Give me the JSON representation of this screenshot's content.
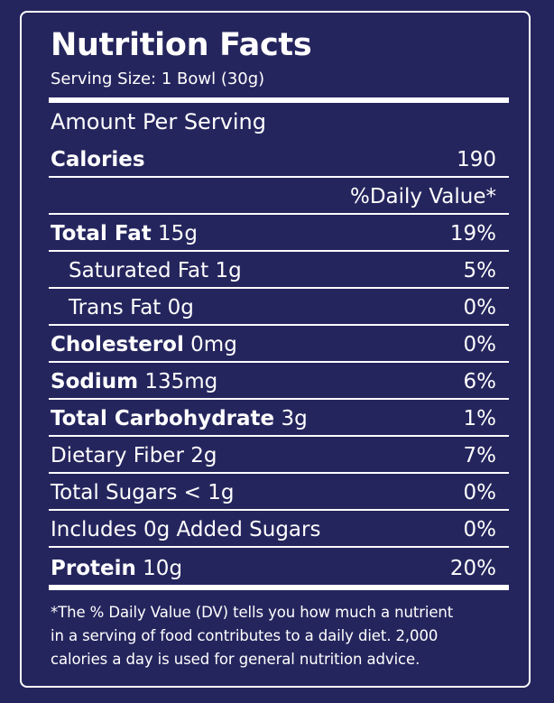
{
  "colors": {
    "background": "#25255e",
    "foreground": "#ffffff"
  },
  "label": {
    "title": "Nutrition Facts",
    "serving_size": "Serving Size: 1 Bowl (30g)",
    "amount_per_serving": "Amount Per Serving",
    "calories": {
      "label": "Calories",
      "value": "190"
    },
    "daily_value_header": "%Daily Value*",
    "nutrients": [
      {
        "name": "Total Fat",
        "amount": "15g",
        "dv": "19%"
      },
      {
        "name": "Saturated Fat",
        "amount": "1g",
        "dv": "5%"
      },
      {
        "name": "Trans Fat",
        "amount": "0g",
        "dv": "0%"
      },
      {
        "name": "Cholesterol",
        "amount": "0mg",
        "dv": "0%"
      },
      {
        "name": "Sodium",
        "amount": "135mg",
        "dv": "6%"
      },
      {
        "name": "Total Carbohydrate",
        "amount": "3g",
        "dv": "1%"
      },
      {
        "name": "Dietary Fiber",
        "amount": "2g",
        "dv": "7%"
      },
      {
        "name": "Total Sugars",
        "amount": "< 1g",
        "dv": "0%"
      },
      {
        "name": "Includes 0g Added Sugars",
        "amount": "",
        "dv": "0%"
      },
      {
        "name": "Protein",
        "amount": "10g",
        "dv": "20%"
      }
    ],
    "footnote_lines": [
      "*The % Daily Value (DV) tells you how much a nutrient",
      "in a serving of food contributes to a daily diet. 2,000",
      "calories a day is used for general nutrition advice."
    ]
  }
}
